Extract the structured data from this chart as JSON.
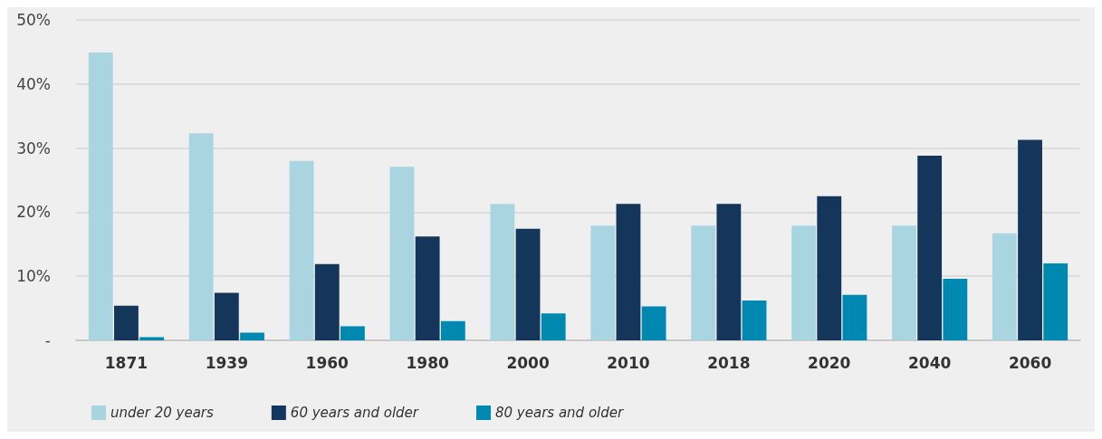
{
  "chart_data": {
    "type": "bar",
    "categories": [
      "1871",
      "1939",
      "1960",
      "1980",
      "2000",
      "2010",
      "2018",
      "2020",
      "2040",
      "2060"
    ],
    "series": [
      {
        "name": "under 20 years",
        "color": "#a9d5e0",
        "values": [
          44.9,
          32.3,
          28.0,
          27.1,
          21.3,
          17.9,
          17.9,
          17.9,
          17.9,
          16.7
        ]
      },
      {
        "name": "60 years and older",
        "color": "#14365a",
        "values": [
          5.4,
          7.4,
          11.9,
          16.2,
          17.4,
          21.3,
          21.3,
          22.5,
          28.8,
          31.3
        ]
      },
      {
        "name": "80 years and older",
        "color": "#0089b0",
        "values": [
          0.5,
          1.2,
          2.2,
          3.0,
          4.2,
          5.3,
          6.2,
          7.1,
          9.6,
          12.0
        ]
      }
    ],
    "ylim": [
      0,
      50
    ],
    "yticks": [
      {
        "value": 0,
        "label": "-"
      },
      {
        "value": 10,
        "label": "10%"
      },
      {
        "value": 20,
        "label": "20%"
      },
      {
        "value": 30,
        "label": "30%"
      },
      {
        "value": 40,
        "label": "40%"
      },
      {
        "value": 50,
        "label": "50%"
      }
    ],
    "grid": "y",
    "legend": "bottom left"
  }
}
